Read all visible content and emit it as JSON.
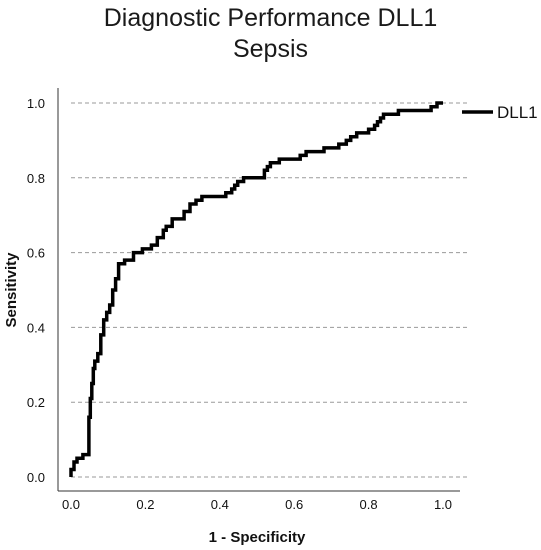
{
  "chart_data": {
    "type": "line",
    "title": "Diagnostic Performance DLL1",
    "subtitle": "Sepsis",
    "xlabel": "1 - Specificity",
    "ylabel": "Sensitivity",
    "xlim": [
      0,
      1
    ],
    "ylim": [
      0,
      1
    ],
    "x_ticks": [
      "0.0",
      "0.2",
      "0.4",
      "0.6",
      "0.8",
      "1.0"
    ],
    "y_ticks": [
      "0.0",
      "0.2",
      "0.4",
      "0.6",
      "0.8",
      "1.0"
    ],
    "grid": "horizontal dashed",
    "legend_position": "top-right",
    "line_color": "#000000",
    "series": [
      {
        "name": "DLL1",
        "x": [
          0.0,
          0.0,
          0.008,
          0.008,
          0.016,
          0.016,
          0.032,
          0.032,
          0.048,
          0.048,
          0.052,
          0.052,
          0.056,
          0.056,
          0.06,
          0.06,
          0.064,
          0.064,
          0.072,
          0.072,
          0.08,
          0.08,
          0.088,
          0.088,
          0.096,
          0.096,
          0.104,
          0.104,
          0.112,
          0.112,
          0.12,
          0.12,
          0.128,
          0.128,
          0.144,
          0.144,
          0.168,
          0.168,
          0.192,
          0.192,
          0.216,
          0.216,
          0.232,
          0.232,
          0.248,
          0.248,
          0.256,
          0.256,
          0.272,
          0.272,
          0.304,
          0.304,
          0.32,
          0.32,
          0.336,
          0.336,
          0.352,
          0.352,
          0.416,
          0.416,
          0.432,
          0.432,
          0.44,
          0.44,
          0.448,
          0.448,
          0.464,
          0.464,
          0.48,
          0.48,
          0.52,
          0.52,
          0.528,
          0.528,
          0.536,
          0.536,
          0.56,
          0.56,
          0.616,
          0.616,
          0.632,
          0.632,
          0.68,
          0.68,
          0.72,
          0.72,
          0.74,
          0.74,
          0.752,
          0.752,
          0.768,
          0.768,
          0.8,
          0.8,
          0.816,
          0.816,
          0.824,
          0.824,
          0.832,
          0.832,
          0.84,
          0.84,
          0.85,
          0.85,
          0.88,
          0.88,
          0.92,
          0.92,
          0.968,
          0.968,
          0.984,
          0.984,
          1.0
        ],
        "y": [
          0.0,
          0.02,
          0.02,
          0.04,
          0.04,
          0.05,
          0.05,
          0.06,
          0.06,
          0.16,
          0.16,
          0.21,
          0.21,
          0.25,
          0.25,
          0.29,
          0.29,
          0.31,
          0.31,
          0.33,
          0.33,
          0.38,
          0.38,
          0.42,
          0.42,
          0.44,
          0.44,
          0.46,
          0.46,
          0.5,
          0.5,
          0.53,
          0.53,
          0.57,
          0.57,
          0.58,
          0.58,
          0.6,
          0.6,
          0.61,
          0.61,
          0.62,
          0.62,
          0.64,
          0.64,
          0.66,
          0.66,
          0.67,
          0.67,
          0.69,
          0.69,
          0.71,
          0.71,
          0.73,
          0.73,
          0.74,
          0.74,
          0.75,
          0.75,
          0.76,
          0.76,
          0.77,
          0.77,
          0.78,
          0.78,
          0.79,
          0.79,
          0.8,
          0.8,
          0.8,
          0.8,
          0.82,
          0.82,
          0.83,
          0.83,
          0.84,
          0.84,
          0.85,
          0.85,
          0.86,
          0.86,
          0.87,
          0.87,
          0.88,
          0.88,
          0.89,
          0.89,
          0.9,
          0.9,
          0.91,
          0.91,
          0.92,
          0.92,
          0.93,
          0.93,
          0.94,
          0.94,
          0.95,
          0.95,
          0.96,
          0.96,
          0.97,
          0.97,
          0.97,
          0.97,
          0.98,
          0.98,
          0.98,
          0.98,
          0.99,
          0.99,
          1.0,
          1.0
        ]
      }
    ]
  }
}
